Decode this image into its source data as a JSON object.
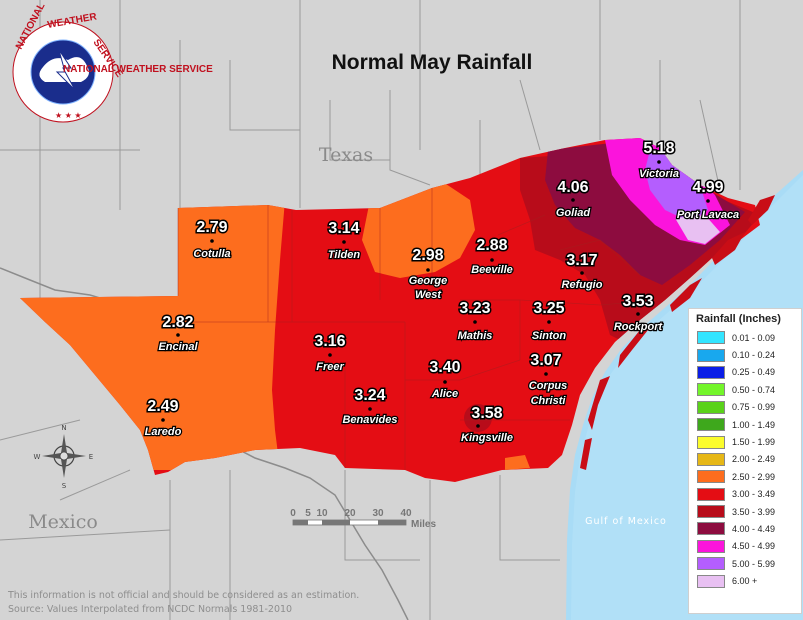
{
  "title": "Normal May Rainfall",
  "logo_text": "NATIONAL WEATHER SERVICE",
  "region_labels": {
    "texas": "Texas",
    "mexico": "Mexico",
    "gulf": "Gulf of Mexico"
  },
  "stations": [
    {
      "name": "Cotulla",
      "value": "2.79"
    },
    {
      "name": "Tilden",
      "value": "3.14"
    },
    {
      "name": "George West",
      "value": "2.98"
    },
    {
      "name": "Beeville",
      "value": "2.88"
    },
    {
      "name": "Goliad",
      "value": "4.06"
    },
    {
      "name": "Victoria",
      "value": "5.18"
    },
    {
      "name": "Port Lavaca",
      "value": "4.99"
    },
    {
      "name": "Refugio",
      "value": "3.17"
    },
    {
      "name": "Rockport",
      "value": "3.53"
    },
    {
      "name": "Encinal",
      "value": "2.82"
    },
    {
      "name": "Freer",
      "value": "3.16"
    },
    {
      "name": "Mathis",
      "value": "3.23"
    },
    {
      "name": "Sinton",
      "value": "3.25"
    },
    {
      "name": "Alice",
      "value": "3.40"
    },
    {
      "name": "Corpus Christi",
      "value": "3.07"
    },
    {
      "name": "Benavides",
      "value": "3.24"
    },
    {
      "name": "Kingsville",
      "value": "3.58"
    },
    {
      "name": "Laredo",
      "value": "2.49"
    }
  ],
  "legend": {
    "title": "Rainfall (Inches)",
    "items": [
      {
        "label": "0.01 - 0.09",
        "color": "#33e5ff"
      },
      {
        "label": "0.10 - 0.24",
        "color": "#18a8ee"
      },
      {
        "label": "0.25 - 0.49",
        "color": "#0a1de6"
      },
      {
        "label": "0.50 - 0.74",
        "color": "#73f52a"
      },
      {
        "label": "0.75 - 0.99",
        "color": "#5ad21a"
      },
      {
        "label": "1.00 - 1.49",
        "color": "#3ea81c"
      },
      {
        "label": "1.50 - 1.99",
        "color": "#fbfc2c"
      },
      {
        "label": "2.00 - 2.49",
        "color": "#e6b716"
      },
      {
        "label": "2.50 - 2.99",
        "color": "#fd6d1e"
      },
      {
        "label": "3.00 - 3.49",
        "color": "#e40d14"
      },
      {
        "label": "3.50 - 3.99",
        "color": "#b80c1a"
      },
      {
        "label": "4.00 - 4.49",
        "color": "#8d0c3f"
      },
      {
        "label": "4.50 - 4.99",
        "color": "#fb14dc"
      },
      {
        "label": "5.00 - 5.99",
        "color": "#b45efe"
      },
      {
        "label": "6.00 +",
        "color": "#e8c0f2"
      }
    ]
  },
  "scale_bar": {
    "ticks": [
      "0",
      "5",
      "10",
      "20",
      "30",
      "40"
    ],
    "unit": "Miles"
  },
  "compass": {
    "n": "N",
    "s": "S",
    "e": "E",
    "w": "W"
  },
  "footer": {
    "disclaimer": "This information is not official and should be considered as an estimation.",
    "source": "Source: Values Interpolated from NCDC Normals 1981-2010"
  }
}
